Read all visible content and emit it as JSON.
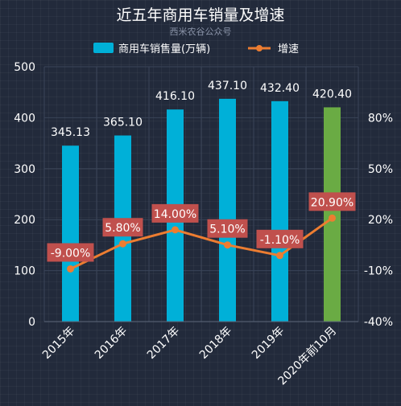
{
  "chart_data": {
    "type": "bar",
    "title": "近五年商用车销量及增速",
    "subtitle": "西米农谷公众号",
    "categories": [
      "2015年",
      "2016年",
      "2017年",
      "2018年",
      "2019年",
      "2020年前10月"
    ],
    "series": [
      {
        "name": "商用车销售量(万辆)",
        "type": "bar",
        "axis": "left",
        "values": [
          345.13,
          365.1,
          416.1,
          437.1,
          432.4,
          420.4
        ],
        "value_labels": [
          "345.13",
          "365.10",
          "416.10",
          "437.10",
          "432.40",
          "420.40"
        ],
        "color": "#00b0d8",
        "highlight_color": "#6aab44",
        "highlight_index": 5
      },
      {
        "name": "增速",
        "type": "line",
        "axis": "right",
        "values": [
          -9.0,
          5.8,
          14.0,
          5.1,
          -1.1,
          20.9
        ],
        "value_labels": [
          "-9.00%",
          "5.80%",
          "14.00%",
          "5.10%",
          "-1.10%",
          "20.90%"
        ],
        "color": "#ed7d31",
        "label_bg": "#c0504d"
      }
    ],
    "y_left": {
      "ylim": [
        0,
        500
      ],
      "ticks": [
        0,
        100,
        200,
        300,
        400,
        500
      ],
      "tick_labels": [
        "0",
        "100",
        "200",
        "300",
        "400",
        "500"
      ]
    },
    "y_right": {
      "ylim": [
        -40,
        110
      ],
      "ticks": [
        -40,
        -10,
        20,
        50,
        80
      ],
      "tick_labels": [
        "-40%",
        "-10%",
        "20%",
        "50%",
        "80%"
      ]
    },
    "grid": true,
    "legend_position": "top-center"
  }
}
